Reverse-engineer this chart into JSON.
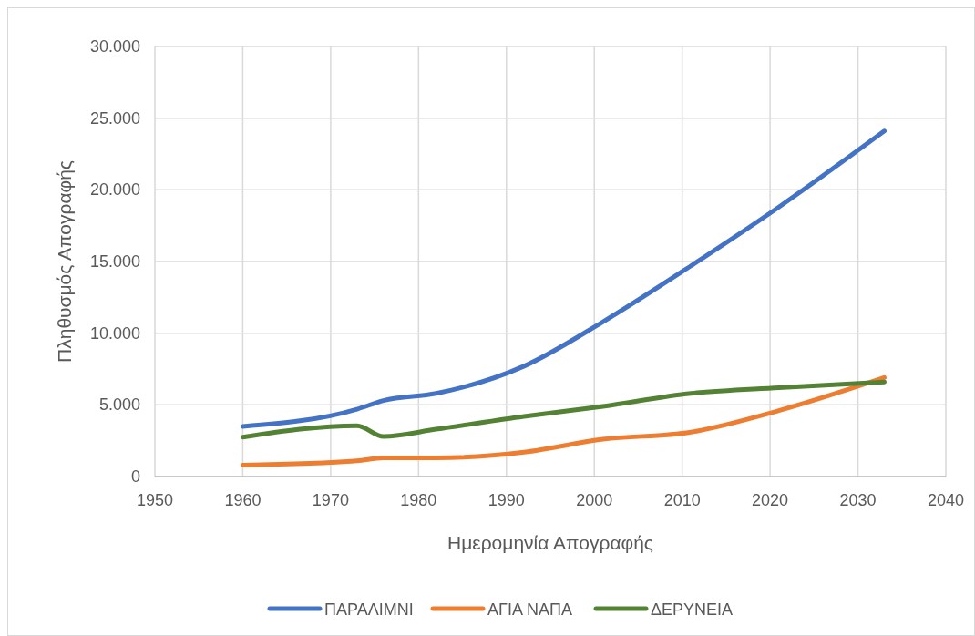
{
  "chart_data": {
    "type": "line",
    "xlabel": "Ημερομηνία Απογραφής",
    "ylabel": "Πληθυσμός Απογραφής",
    "x": [
      1960,
      1973,
      1976,
      1982,
      1992,
      2001,
      2011,
      2021,
      2033
    ],
    "series": [
      {
        "name": "ΠΑΡΑΛΙΜΝΙ",
        "color": "#4472c4",
        "values": [
          3500,
          4700,
          5300,
          5800,
          7700,
          10800,
          14700,
          18800,
          24100
        ]
      },
      {
        "name": "ΑΓΙΑ ΝΑΠΑ",
        "color": "#ed7d31",
        "values": [
          800,
          1100,
          1300,
          1300,
          1700,
          2600,
          3100,
          4600,
          6900
        ]
      },
      {
        "name": "ΔΕΡΥΝΕΙΑ",
        "color": "#548235",
        "values": [
          2750,
          3550,
          2800,
          3300,
          4200,
          4900,
          5800,
          6200,
          6600
        ]
      }
    ],
    "xlim": [
      1950,
      2040
    ],
    "xticks": [
      1950,
      1960,
      1970,
      1980,
      1990,
      2000,
      2010,
      2020,
      2030,
      2040
    ],
    "ylim": [
      0,
      30000
    ],
    "yticks": [
      {
        "value": 0,
        "label": "0"
      },
      {
        "value": 5000,
        "label": "5.000"
      },
      {
        "value": 10000,
        "label": "10.000"
      },
      {
        "value": 15000,
        "label": "15.000"
      },
      {
        "value": 20000,
        "label": "20.000"
      },
      {
        "value": 25000,
        "label": "25.000"
      },
      {
        "value": 30000,
        "label": "30.000"
      }
    ],
    "grid": true,
    "legend": "bottom",
    "marker": "none",
    "line_style": "solid"
  }
}
